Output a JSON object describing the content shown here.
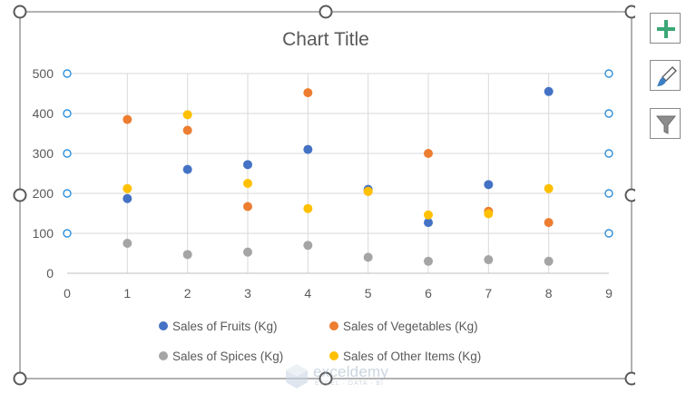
{
  "chart_data": {
    "type": "scatter",
    "title": "Chart Title",
    "xlabel": "",
    "ylabel": "",
    "xlim": [
      0,
      9
    ],
    "ylim": [
      0,
      500
    ],
    "xticks": [
      "0",
      "1",
      "2",
      "3",
      "4",
      "5",
      "6",
      "7",
      "8",
      "9"
    ],
    "yticks": [
      "0",
      "100",
      "200",
      "300",
      "400",
      "500"
    ],
    "grid": true,
    "legend_position": "bottom",
    "series": [
      {
        "name": "Sales of Fruits (Kg)",
        "color": "#4472C4",
        "x": [
          1,
          2,
          3,
          4,
          5,
          6,
          7,
          8
        ],
        "y": [
          187,
          260,
          272,
          310,
          210,
          127,
          222,
          455
        ]
      },
      {
        "name": "Sales of Vegetables (Kg)",
        "color": "#ED7D31",
        "x": [
          1,
          2,
          3,
          4,
          5,
          6,
          7,
          8
        ],
        "y": [
          385,
          358,
          167,
          452,
          205,
          300,
          155,
          127
        ]
      },
      {
        "name": "Sales of Spices (Kg)",
        "color": "#A5A5A5",
        "x": [
          1,
          2,
          3,
          4,
          5,
          6,
          7,
          8
        ],
        "y": [
          75,
          47,
          53,
          70,
          40,
          30,
          34,
          30
        ]
      },
      {
        "name": "Sales of Other Items (Kg)",
        "color": "#FFC000",
        "x": [
          1,
          2,
          3,
          4,
          5,
          6,
          7,
          8
        ],
        "y": [
          212,
          397,
          225,
          162,
          205,
          146,
          149,
          212
        ]
      }
    ]
  },
  "side_buttons": [
    {
      "icon": "plus-icon",
      "label": "Chart Elements"
    },
    {
      "icon": "paintbrush-icon",
      "label": "Chart Styles"
    },
    {
      "icon": "filter-icon",
      "label": "Chart Filters"
    }
  ],
  "watermark": {
    "brand": "exceldemy",
    "tagline": "EXCEL · DATA · BI"
  }
}
